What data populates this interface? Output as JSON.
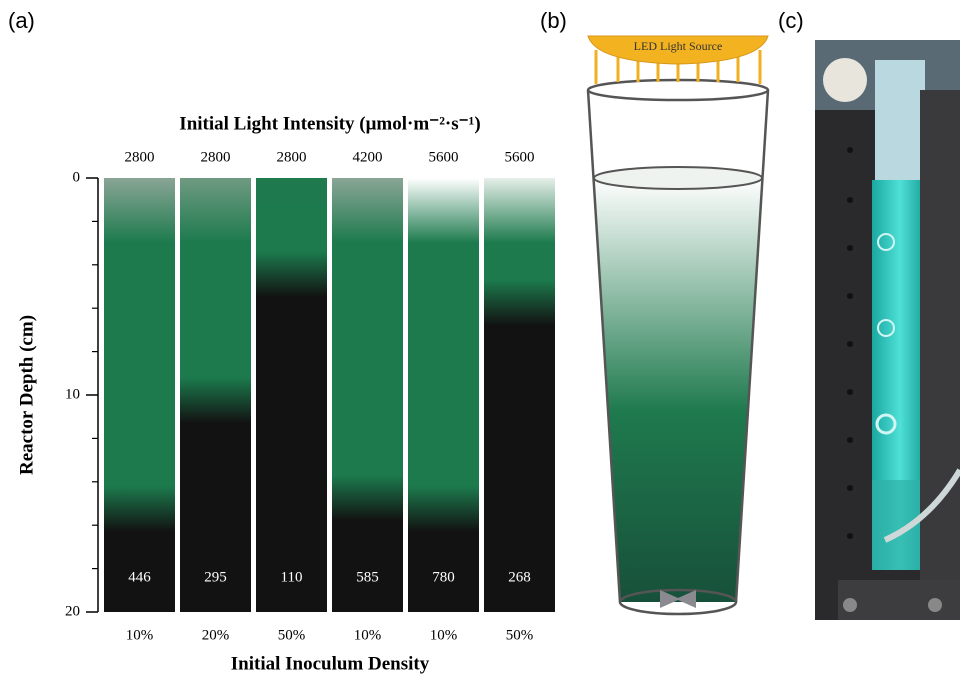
{
  "panel_labels": [
    "(a)",
    "(b)",
    "(c)"
  ],
  "chart_data": {
    "type": "gradient-column",
    "title": "Initial Light Intensity (μmol·m⁻²·s⁻¹)",
    "y_label": "Reactor Depth (cm)",
    "x_label": "Initial Inoculum Density",
    "categories": [
      "10%",
      "20%",
      "50%",
      "10%",
      "10%",
      "50%"
    ],
    "light_intensity": [
      2800,
      2800,
      2800,
      4200,
      5600,
      5600
    ],
    "values": [
      446,
      295,
      110,
      585,
      780,
      268
    ],
    "dark_depth": [
      14.5,
      9.5,
      3.7,
      14,
      14.5,
      5
    ],
    "top_colors": [
      "#8aa596",
      "#6f9a82",
      "#1f7a4e",
      "#8aa596",
      "#ffffff",
      "#e6efe9"
    ],
    "green_color": "#1c7a4d",
    "dark_color": "#121212",
    "ylim": [
      0,
      20
    ],
    "yticks": [
      0,
      10,
      20
    ],
    "minor_yticks": [
      2,
      4,
      6,
      8,
      12,
      14,
      16,
      18
    ]
  },
  "diagram": {
    "light_label": "LED Light Source"
  }
}
